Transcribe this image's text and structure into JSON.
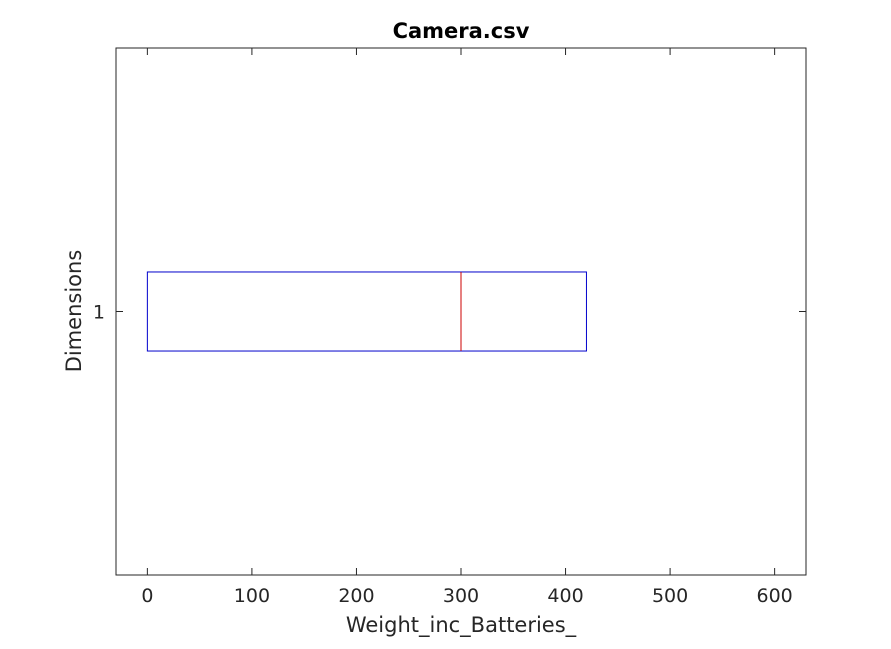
{
  "chart_data": {
    "type": "boxplot",
    "title": "Camera.csv",
    "xlabel": "Weight_inc_Batteries_",
    "ylabel": "Dimensions",
    "orientation": "horizontal",
    "xlim": [
      -30,
      630
    ],
    "xticks": [
      0,
      100,
      200,
      300,
      400,
      500,
      600
    ],
    "xtick_labels": [
      "0",
      "100",
      "200",
      "300",
      "400",
      "500",
      "600"
    ],
    "yticks": [
      "1"
    ],
    "grid": false,
    "series": [
      {
        "category": "1",
        "q1": 0,
        "median": 300,
        "q3": 420
      }
    ],
    "colors": {
      "box": "#0000cc",
      "median": "#cc0000",
      "axes": "#262626",
      "text": "#262626"
    }
  }
}
